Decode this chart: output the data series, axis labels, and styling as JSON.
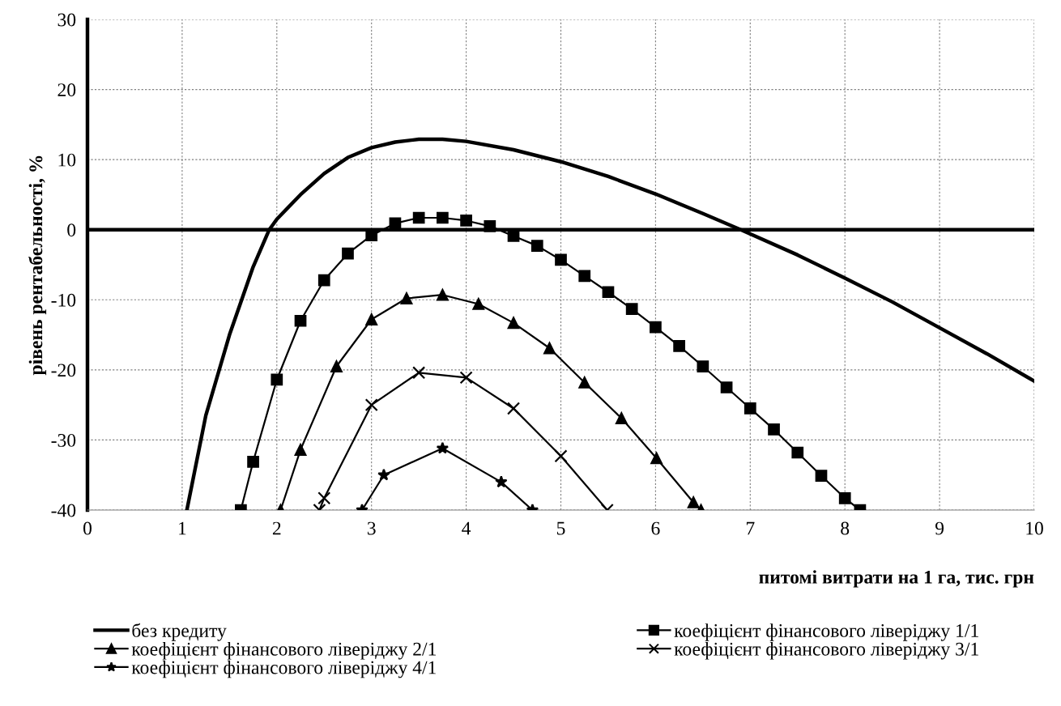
{
  "chart_data": {
    "type": "line",
    "xlabel": "питомі витрати на 1 га, тис. грн",
    "ylabel": "рівень рентабельності, %",
    "xlim": [
      0,
      10
    ],
    "xticks": [
      0,
      1,
      2,
      3,
      4,
      5,
      6,
      7,
      8,
      9,
      10
    ],
    "ylim": [
      -40,
      30
    ],
    "yticks": [
      -40,
      -30,
      -20,
      -10,
      0,
      10,
      20,
      30
    ],
    "grid": true,
    "legend": "bottom",
    "line_style": "solid",
    "ref_lines": [
      {
        "axis": "y",
        "value": 0,
        "color": "#000000"
      }
    ],
    "series": [
      {
        "name": "без кредиту",
        "color": "#000000",
        "marker": "none",
        "x": [
          1.05,
          1.25,
          1.5,
          1.75,
          1.92,
          2,
          2.25,
          2.5,
          2.75,
          3,
          3.25,
          3.5,
          3.75,
          4,
          4.5,
          5,
          5.5,
          6,
          6.5,
          6.9,
          7.5,
          8,
          8.5,
          9,
          9.5,
          10
        ],
        "values": [
          -40,
          -26.5,
          -15,
          -5.3,
          0,
          1.5,
          5,
          8,
          10.3,
          11.7,
          12.5,
          12.9,
          12.9,
          12.6,
          11.4,
          9.7,
          7.6,
          5.1,
          2.3,
          0,
          -3.6,
          -6.9,
          -10.3,
          -14,
          -17.7,
          -21.6
        ]
      },
      {
        "name": "коефіцієнт фінансового ліверіджу 1/1",
        "color": "#000000",
        "marker": "square",
        "x": [
          1.62,
          1.75,
          2,
          2.25,
          2.5,
          2.75,
          3,
          3.25,
          3.5,
          3.75,
          4,
          4.25,
          4.5,
          4.75,
          5,
          5.25,
          5.5,
          5.75,
          6,
          6.25,
          6.5,
          6.75,
          7,
          7.25,
          7.5,
          7.75,
          8,
          8.16
        ],
        "values": [
          -40,
          -33.1,
          -21.4,
          -13,
          -7.2,
          -3.4,
          -0.8,
          0.9,
          1.7,
          1.7,
          1.3,
          0.5,
          -0.9,
          -2.3,
          -4.3,
          -6.6,
          -8.9,
          -11.3,
          -13.9,
          -16.6,
          -19.5,
          -22.5,
          -25.5,
          -28.5,
          -31.8,
          -35.1,
          -38.3,
          -40
        ]
      },
      {
        "name": "коефіцієнт фінансового ліверіджу 2/1",
        "color": "#000000",
        "marker": "triangle",
        "x": [
          2.04,
          2.25,
          2.63,
          3,
          3.37,
          3.75,
          4.13,
          4.5,
          4.88,
          5.25,
          5.64,
          6.01,
          6.4,
          6.48
        ],
        "values": [
          -40,
          -31.4,
          -19.5,
          -12.8,
          -9.8,
          -9.3,
          -10.6,
          -13.3,
          -16.9,
          -21.8,
          -26.9,
          -32.6,
          -38.9,
          -40
        ]
      },
      {
        "name": "коефіцієнт фінансового ліверіджу 3/1",
        "color": "#000000",
        "marker": "cross",
        "x": [
          2.45,
          2.5,
          3,
          3.5,
          4,
          4.5,
          5,
          5.49
        ],
        "values": [
          -40,
          -38.3,
          -25,
          -20.4,
          -21.1,
          -25.5,
          -32.3,
          -40
        ]
      },
      {
        "name": "коефіцієнт фінансового ліверіджу 4/1",
        "color": "#000000",
        "marker": "star",
        "x": [
          2.9,
          3.13,
          3.75,
          4.37,
          4.7
        ],
        "values": [
          -40,
          -35,
          -31.2,
          -36,
          -40
        ]
      }
    ]
  }
}
